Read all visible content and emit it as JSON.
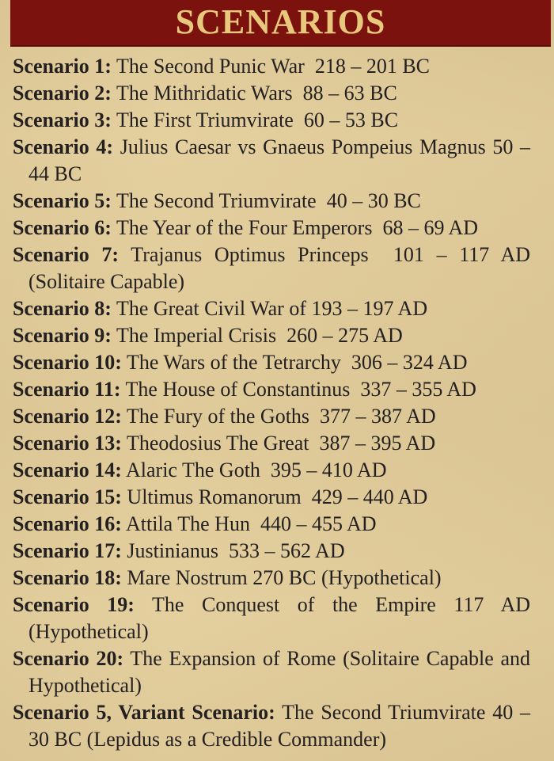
{
  "page": {
    "background_color": "#e4cf9f",
    "text_color": "#24201f"
  },
  "header": {
    "title": "SCENARIOS",
    "bar_color": "#7c120d",
    "title_color": "#e7c87c"
  },
  "scenarios": [
    {
      "label": "Scenario 1:",
      "text": "The Second Punic War  218 – 201 BC"
    },
    {
      "label": "Scenario 2:",
      "text": "The Mithridatic Wars  88 – 63 BC"
    },
    {
      "label": "Scenario 3:",
      "text": "The First Triumvirate  60 – 53 BC"
    },
    {
      "label": "Scenario 4:",
      "text": "Julius Caesar vs Gnaeus Pompeius Magnus 50 – 44 BC"
    },
    {
      "label": "Scenario 5:",
      "text": "The Second Triumvirate  40 – 30 BC"
    },
    {
      "label": "Scenario 6:",
      "text": "The Year of the Four Emperors  68 – 69 AD"
    },
    {
      "label": "Scenario 7:",
      "text": "Trajanus Optimus Princeps  101 – 117 AD (Solitaire Capable)"
    },
    {
      "label": "Scenario 8:",
      "text": "The Great Civil War of 193 – 197 AD"
    },
    {
      "label": "Scenario 9:",
      "text": "The Imperial Crisis  260 – 275 AD"
    },
    {
      "label": "Scenario 10:",
      "text": "The Wars of the Tetrarchy  306 – 324 AD"
    },
    {
      "label": "Scenario 11:",
      "text": "The House of Constantinus  337 – 355 AD"
    },
    {
      "label": "Scenario 12:",
      "text": "The Fury of the Goths  377 – 387 AD"
    },
    {
      "label": "Scenario 13:",
      "text": "Theodosius The Great  387 – 395 AD"
    },
    {
      "label": "Scenario 14:",
      "text": "Alaric The Goth  395 – 410 AD"
    },
    {
      "label": "Scenario 15:",
      "text": "Ultimus Romanorum  429 – 440 AD"
    },
    {
      "label": "Scenario 16:",
      "text": "Attila The Hun  440 – 455 AD"
    },
    {
      "label": "Scenario 17:",
      "text": "Justinianus  533 – 562 AD"
    },
    {
      "label": "Scenario 18:",
      "text": "Mare Nostrum 270 BC (Hypothetical)"
    },
    {
      "label": "Scenario 19:",
      "text": "The Conquest of the Empire 117 AD (Hypothetical)"
    },
    {
      "label": "Scenario 20:",
      "text": "The Expansion of Rome (Solitaire Capable and Hypothetical)"
    },
    {
      "label": "Scenario 5, Variant Scenario:",
      "text": "The Second Triumvirate 40 – 30 BC (Lepidus as a Credible Commander)"
    }
  ]
}
